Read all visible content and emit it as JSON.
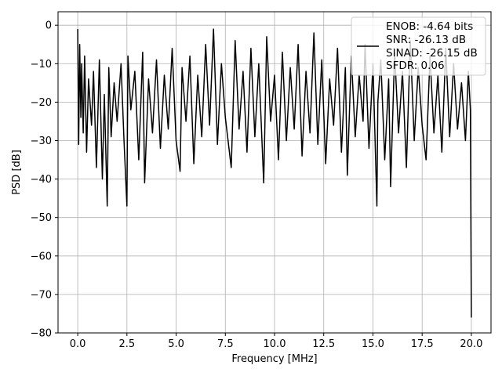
{
  "chart_data": {
    "type": "line",
    "title": "",
    "xlabel": "Frequency [MHz]",
    "ylabel": "PSD [dB]",
    "xlim": [
      -1,
      21
    ],
    "ylim": [
      -80,
      3.5
    ],
    "xticks": [
      0.0,
      2.5,
      5.0,
      7.5,
      10.0,
      12.5,
      15.0,
      17.5,
      20.0
    ],
    "xtick_labels": [
      "0.0",
      "2.5",
      "5.0",
      "7.5",
      "10.0",
      "12.5",
      "15.0",
      "17.5",
      "20.0"
    ],
    "yticks": [
      0,
      -10,
      -20,
      -30,
      -40,
      -50,
      -60,
      -70,
      -80
    ],
    "ytick_labels": [
      "0",
      "−10",
      "−20",
      "−30",
      "−40",
      "−50",
      "−60",
      "−70",
      "−80"
    ],
    "grid": true,
    "legend_position": "top-right",
    "line_color": "#000000",
    "series": [
      {
        "name": "",
        "x": [
          0.0,
          0.05,
          0.1,
          0.16,
          0.2,
          0.28,
          0.35,
          0.45,
          0.55,
          0.7,
          0.8,
          0.95,
          1.1,
          1.25,
          1.35,
          1.5,
          1.58,
          1.7,
          1.85,
          2.0,
          2.2,
          2.35,
          2.5,
          2.55,
          2.7,
          2.9,
          3.1,
          3.3,
          3.4,
          3.6,
          3.8,
          4.0,
          4.2,
          4.4,
          4.6,
          4.8,
          5.0,
          5.2,
          5.3,
          5.5,
          5.7,
          5.9,
          6.1,
          6.3,
          6.5,
          6.7,
          6.9,
          7.1,
          7.3,
          7.5,
          7.8,
          8.0,
          8.2,
          8.4,
          8.6,
          8.8,
          9.0,
          9.2,
          9.45,
          9.6,
          9.8,
          10.0,
          10.2,
          10.4,
          10.6,
          10.8,
          11.0,
          11.2,
          11.4,
          11.6,
          11.8,
          12.0,
          12.2,
          12.4,
          12.6,
          12.8,
          13.0,
          13.2,
          13.4,
          13.6,
          13.7,
          13.9,
          14.1,
          14.3,
          14.5,
          14.6,
          14.8,
          15.0,
          15.2,
          15.25,
          15.4,
          15.6,
          15.8,
          15.9,
          16.1,
          16.3,
          16.5,
          16.7,
          16.9,
          17.1,
          17.3,
          17.5,
          17.7,
          17.9,
          18.1,
          18.3,
          18.5,
          18.7,
          18.9,
          19.1,
          19.3,
          19.5,
          19.7,
          19.85,
          19.95,
          20.0
        ],
        "y": [
          -1,
          -31,
          -5,
          -24,
          -10,
          -28,
          -8,
          -33,
          -14,
          -26,
          -12,
          -37,
          -9,
          -40,
          -18,
          -47,
          -11,
          -29,
          -15,
          -25,
          -10,
          -30,
          -47,
          -8,
          -22,
          -12,
          -35,
          -7,
          -41,
          -14,
          -28,
          -9,
          -32,
          -13,
          -27,
          -6,
          -30,
          -38,
          -11,
          -25,
          -8,
          -36,
          -13,
          -29,
          -5,
          -26,
          -1,
          -31,
          -10,
          -24,
          -37,
          -4,
          -27,
          -12,
          -33,
          -6,
          -29,
          -10,
          -41,
          -3,
          -25,
          -13,
          -35,
          -7,
          -30,
          -11,
          -27,
          -5,
          -34,
          -12,
          -28,
          -2,
          -31,
          -9,
          -36,
          -14,
          -26,
          -6,
          -33,
          -11,
          -39,
          -8,
          -29,
          -13,
          -25,
          -5,
          -32,
          -10,
          -47,
          -20,
          -9,
          -35,
          -14,
          -42,
          -7,
          -28,
          -12,
          -37,
          -4,
          -30,
          -11,
          -26,
          -35,
          -8,
          -28,
          -13,
          -33,
          -6,
          -29,
          -10,
          -27,
          -15,
          -30,
          -12,
          -22,
          -76
        ]
      }
    ],
    "legend": {
      "lines": [
        "ENOB: -4.64 bits",
        "SNR: -26.13 dB",
        "SINAD: -26.15 dB",
        "SFDR: 0.06"
      ]
    }
  }
}
